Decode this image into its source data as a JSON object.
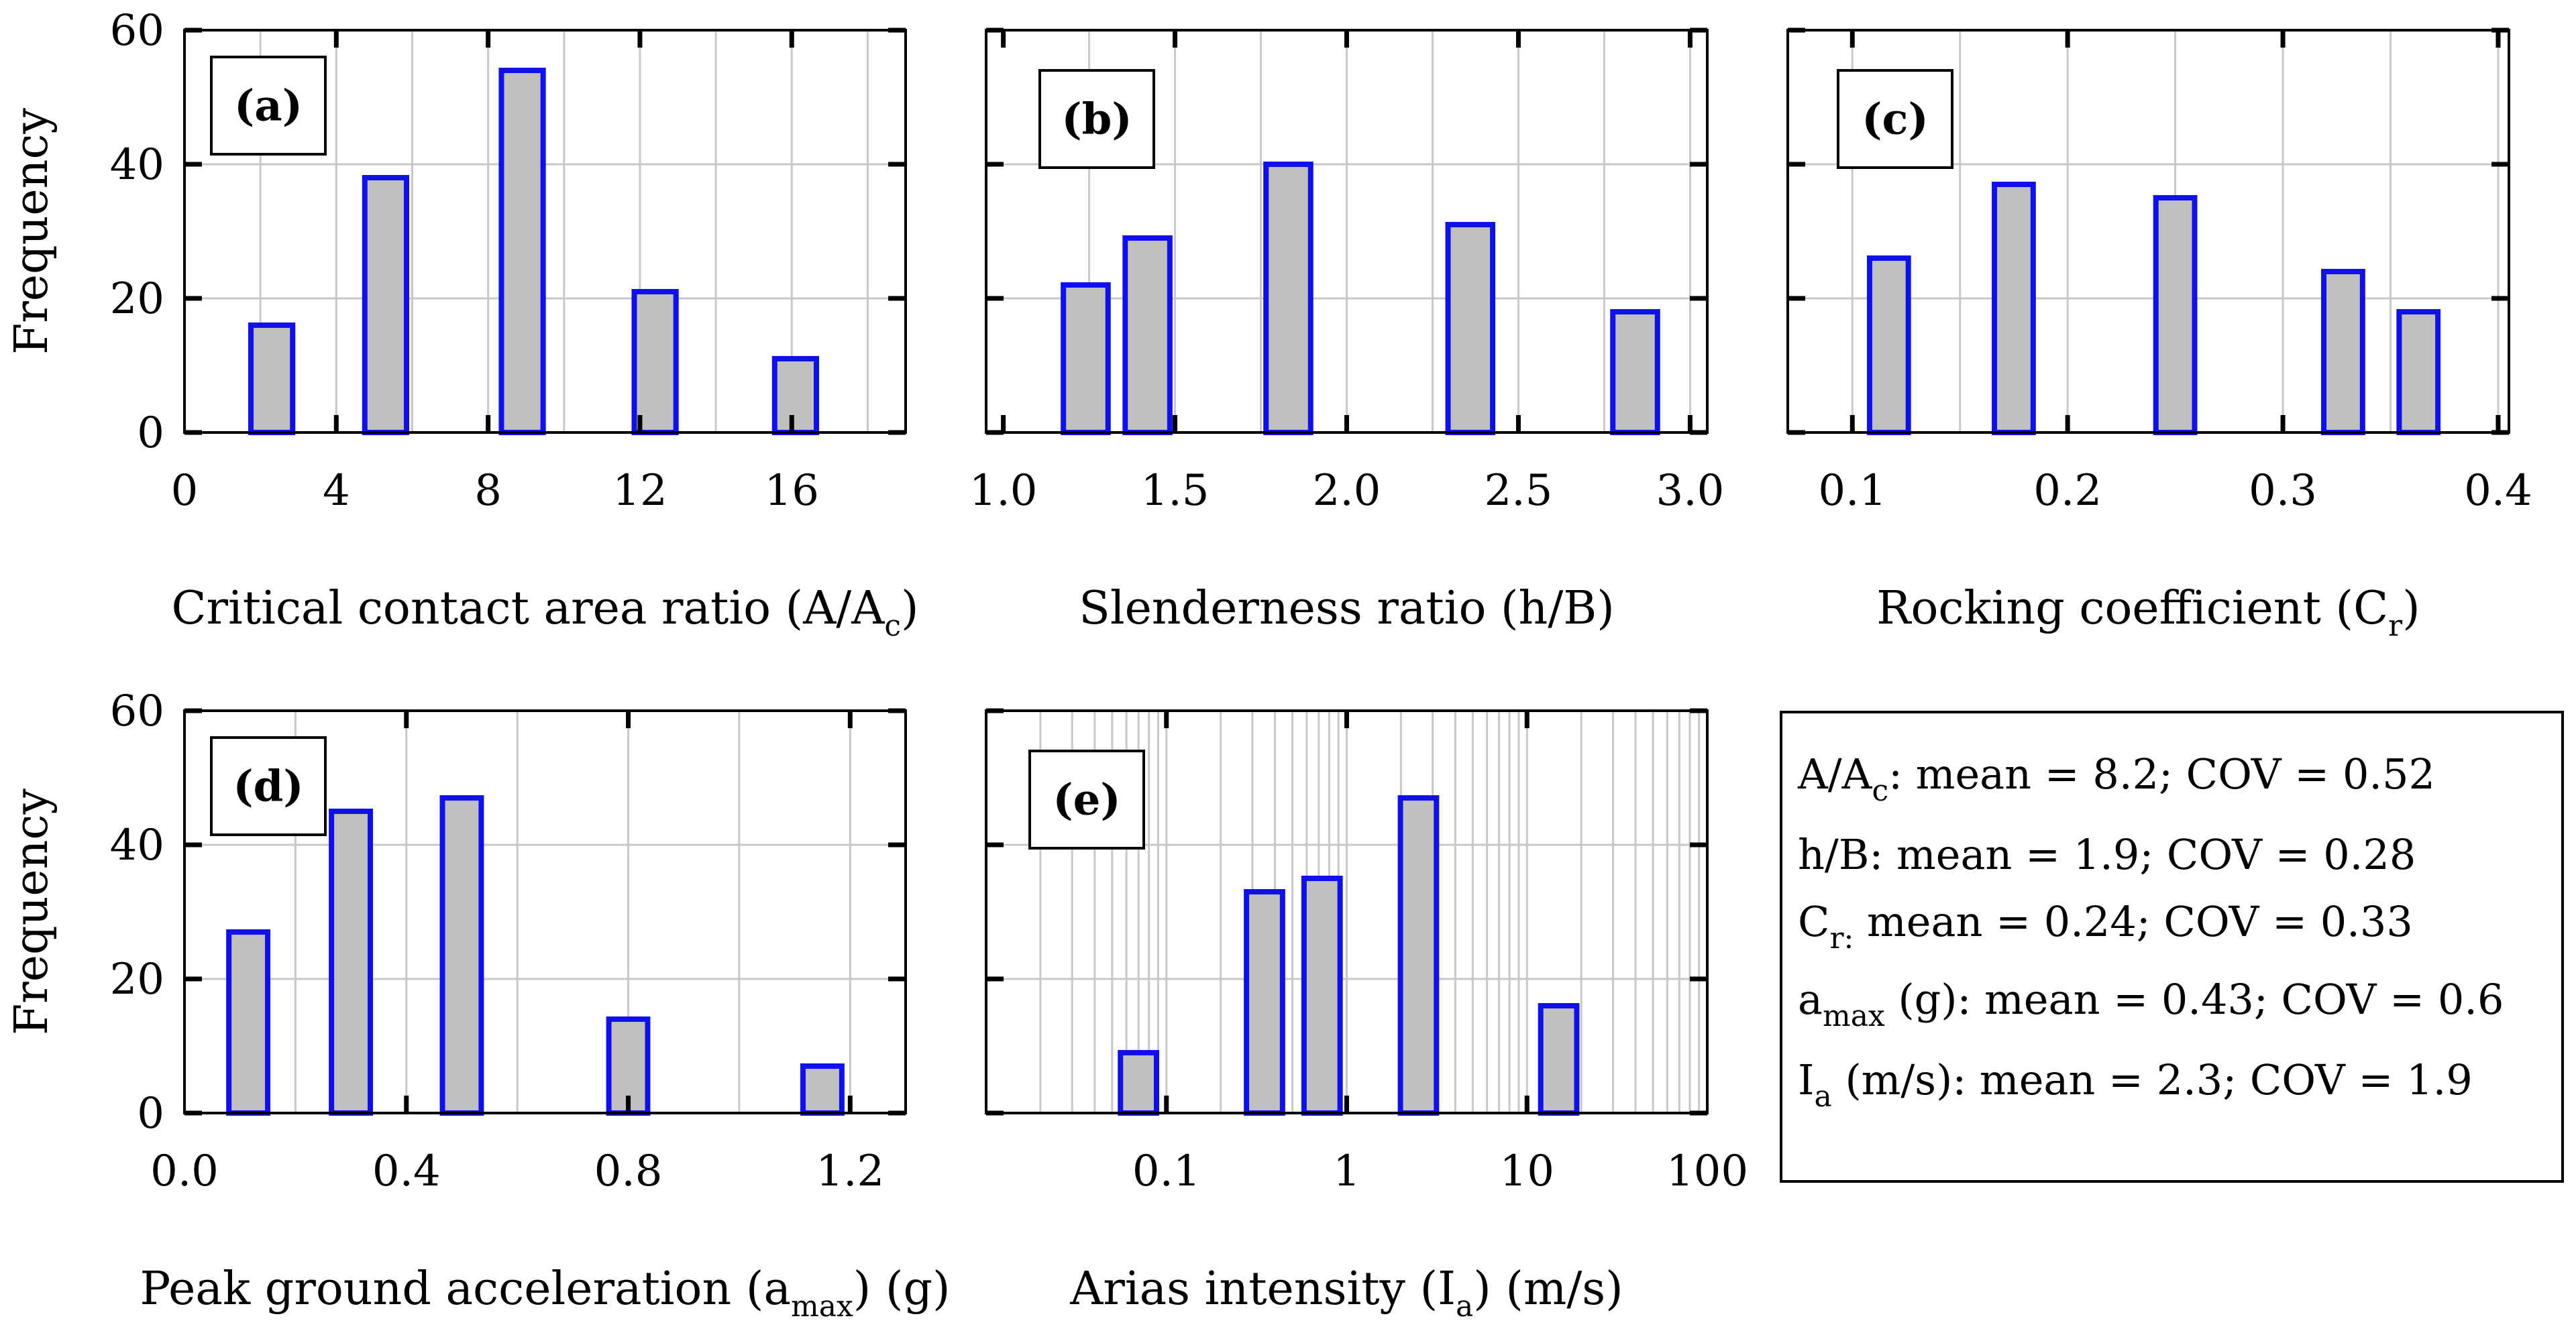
{
  "chart_data": [
    {
      "id": "a",
      "type": "bar",
      "panel_label": "(a)",
      "xlabel": "Critical contact area ratio (A/A",
      "xlabel_sub": "c",
      "xlabel_tail": ")",
      "ylabel": "Frequency",
      "xscale": "linear",
      "xlim": [
        0,
        19
      ],
      "ylim": [
        0,
        60
      ],
      "xticks": [
        0,
        4,
        8,
        12,
        16
      ],
      "xtick_labels": [
        "0",
        "4",
        "8",
        "12",
        "16"
      ],
      "yticks": [
        0,
        20,
        40,
        60
      ],
      "ytick_labels": [
        "0",
        "20",
        "40",
        "60"
      ],
      "grid_x": [
        2,
        4,
        6,
        8,
        10,
        12,
        14,
        16,
        18
      ],
      "bar_width": 1.1,
      "x": [
        2.3,
        5.3,
        8.9,
        12.4,
        16.1
      ],
      "values": [
        16,
        38,
        54,
        21,
        11
      ]
    },
    {
      "id": "b",
      "type": "bar",
      "panel_label": "(b)",
      "xlabel": "Slenderness ratio (h/B)",
      "ylabel": "",
      "xscale": "linear",
      "xlim": [
        0.95,
        3.05
      ],
      "ylim": [
        0,
        60
      ],
      "xticks": [
        1.0,
        1.5,
        2.0,
        2.5,
        3.0
      ],
      "xtick_labels": [
        "1.0",
        "1.5",
        "2.0",
        "2.5",
        "3.0"
      ],
      "yticks": [
        0,
        20,
        40,
        60
      ],
      "ytick_labels": [],
      "grid_x": [
        1.25,
        1.5,
        1.75,
        2.0,
        2.25,
        2.5,
        2.75,
        3.0
      ],
      "bar_width": 0.13,
      "x": [
        1.24,
        1.42,
        1.83,
        2.36,
        2.84
      ],
      "values": [
        22,
        29,
        40,
        31,
        18
      ]
    },
    {
      "id": "c",
      "type": "bar",
      "panel_label": "(c)",
      "xlabel": "Rocking coefficient (C",
      "xlabel_sub": "r",
      "xlabel_tail": ")",
      "ylabel": "",
      "xscale": "linear",
      "xlim": [
        0.07,
        0.405
      ],
      "ylim": [
        0,
        60
      ],
      "xticks": [
        0.1,
        0.2,
        0.3,
        0.4
      ],
      "xtick_labels": [
        "0.1",
        "0.2",
        "0.3",
        "0.4"
      ],
      "yticks": [
        0,
        20,
        40,
        60
      ],
      "ytick_labels": [],
      "grid_x": [
        0.1,
        0.15,
        0.2,
        0.25,
        0.3,
        0.35,
        0.4
      ],
      "bar_width": 0.018,
      "x": [
        0.117,
        0.175,
        0.25,
        0.328,
        0.363
      ],
      "values": [
        26,
        37,
        35,
        24,
        18
      ]
    },
    {
      "id": "d",
      "type": "bar",
      "panel_label": "(d)",
      "xlabel": "Peak ground acceleration (a",
      "xlabel_sub": "max",
      "xlabel_tail": ") (g)",
      "ylabel": "Frequency",
      "xscale": "linear",
      "xlim": [
        0.0,
        1.3
      ],
      "ylim": [
        0,
        60
      ],
      "xticks": [
        0.0,
        0.4,
        0.8,
        1.2
      ],
      "xtick_labels": [
        "0.0",
        "0.4",
        "0.8",
        "1.2"
      ],
      "yticks": [
        0,
        20,
        40,
        60
      ],
      "ytick_labels": [
        "0",
        "20",
        "40",
        "60"
      ],
      "grid_x": [
        0.2,
        0.4,
        0.6,
        0.8,
        1.0,
        1.2
      ],
      "bar_width": 0.07,
      "x": [
        0.115,
        0.3,
        0.5,
        0.8,
        1.15
      ],
      "values": [
        27,
        45,
        47,
        14,
        7
      ]
    },
    {
      "id": "e",
      "type": "bar",
      "panel_label": "(e)",
      "xlabel": "Arias intensity (I",
      "xlabel_sub": "a",
      "xlabel_tail": ") (m/s)",
      "ylabel": "",
      "xscale": "log",
      "xlim": [
        0.01,
        100
      ],
      "ylim": [
        0,
        60
      ],
      "xticks": [
        0.1,
        1,
        10,
        100
      ],
      "xtick_labels": [
        "0.1",
        "1",
        "10",
        "100"
      ],
      "yticks": [
        0,
        20,
        40,
        60
      ],
      "ytick_labels": [],
      "bar_log_halfwidth": 0.1,
      "x": [
        0.07,
        0.35,
        0.73,
        2.5,
        15
      ],
      "values": [
        9,
        33,
        35,
        47,
        16
      ]
    }
  ],
  "legend": {
    "lines": [
      {
        "main": "A/A",
        "sub": "c",
        "rest": ": mean = 8.2; COV = 0.52"
      },
      {
        "main": "h/B: mean = 1.9; COV = 0.28",
        "sub": "",
        "rest": ""
      },
      {
        "main": "C",
        "sub": "r:",
        "rest": " mean = 0.24; COV = 0.33"
      },
      {
        "main": "a",
        "sub": "max",
        "rest": " (g): mean = 0.43; COV = 0.6"
      },
      {
        "main": "I",
        "sub": "a",
        "rest": " (m/s): mean = 2.3; COV = 1.9"
      }
    ]
  },
  "colors": {
    "bar_fill": "#c0c0c0",
    "bar_edge": "#1010e8",
    "grid": "#c8c8c8",
    "axis": "#000000"
  }
}
